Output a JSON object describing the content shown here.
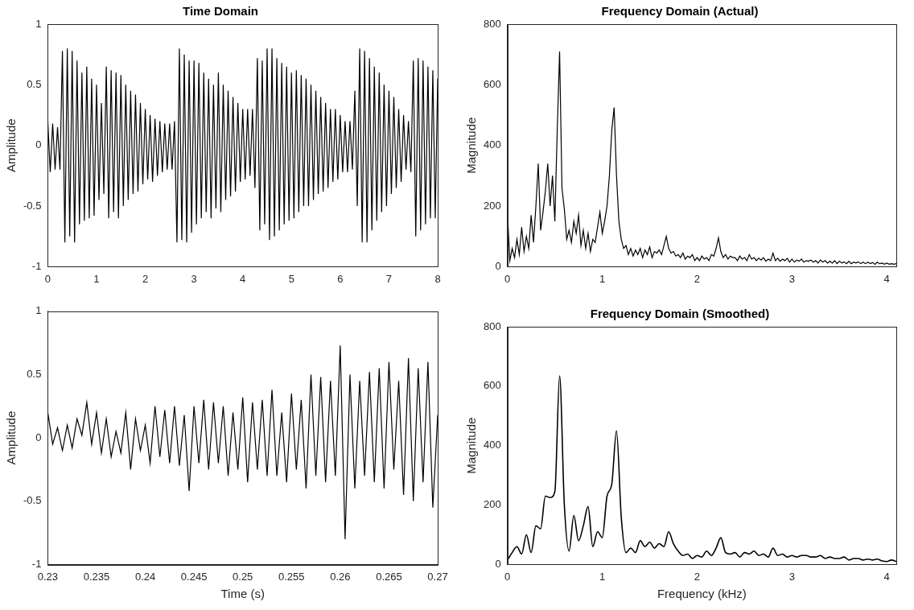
{
  "chart_data": [
    {
      "type": "line",
      "title": "Time Domain",
      "y_label": "Amplitude",
      "color": "#000000",
      "grid": false,
      "xlim": [
        0,
        8
      ],
      "xticks": [
        0,
        1,
        2,
        3,
        4,
        5,
        6,
        7,
        8
      ],
      "ylim": [
        -1,
        1
      ],
      "yticks": [
        -1,
        -0.5,
        0,
        0.5,
        1
      ],
      "x": [
        0,
        0.05,
        0.1,
        0.15,
        0.2,
        0.25,
        0.3,
        0.35,
        0.4,
        0.45,
        0.5,
        0.55,
        0.6,
        0.65,
        0.7,
        0.75,
        0.8,
        0.85,
        0.9,
        0.95,
        1,
        1.05,
        1.1,
        1.15,
        1.2,
        1.25,
        1.3,
        1.35,
        1.4,
        1.45,
        1.5,
        1.55,
        1.6,
        1.65,
        1.7,
        1.75,
        1.8,
        1.85,
        1.9,
        1.95,
        2,
        2.05,
        2.1,
        2.15,
        2.2,
        2.25,
        2.3,
        2.35,
        2.4,
        2.45,
        2.5,
        2.55,
        2.6,
        2.65,
        2.7,
        2.75,
        2.8,
        2.85,
        2.9,
        2.95,
        3,
        3.05,
        3.1,
        3.15,
        3.2,
        3.25,
        3.3,
        3.35,
        3.4,
        3.45,
        3.5,
        3.55,
        3.6,
        3.65,
        3.7,
        3.75,
        3.8,
        3.85,
        3.9,
        3.95,
        4,
        4.05,
        4.1,
        4.15,
        4.2,
        4.25,
        4.3,
        4.35,
        4.4,
        4.45,
        4.5,
        4.55,
        4.6,
        4.65,
        4.7,
        4.75,
        4.8,
        4.85,
        4.9,
        4.95,
        5,
        5.05,
        5.1,
        5.15,
        5.2,
        5.25,
        5.3,
        5.35,
        5.4,
        5.45,
        5.5,
        5.55,
        5.6,
        5.65,
        5.7,
        5.75,
        5.8,
        5.85,
        5.9,
        5.95,
        6,
        6.05,
        6.1,
        6.15,
        6.2,
        6.25,
        6.3,
        6.35,
        6.4,
        6.45,
        6.5,
        6.55,
        6.6,
        6.65,
        6.7,
        6.75,
        6.8,
        6.85,
        6.9,
        6.95,
        7,
        7.05,
        7.1,
        7.15,
        7.2,
        7.25,
        7.3,
        7.35,
        7.4,
        7.45,
        7.5,
        7.55,
        7.6,
        7.65,
        7.7,
        7.75,
        7.8,
        7.85,
        7.9,
        7.95,
        8
      ],
      "values": [
        0.2,
        -0.22,
        0.18,
        -0.2,
        0.15,
        -0.2,
        0.78,
        -0.8,
        0.8,
        -0.75,
        0.78,
        -0.8,
        0.7,
        -0.65,
        0.6,
        -0.62,
        0.65,
        -0.6,
        0.55,
        -0.58,
        0.5,
        -0.45,
        0.35,
        -0.4,
        0.65,
        -0.6,
        0.62,
        -0.55,
        0.6,
        -0.6,
        0.58,
        -0.5,
        0.5,
        -0.45,
        0.45,
        -0.4,
        0.42,
        -0.38,
        0.35,
        -0.32,
        0.3,
        -0.28,
        0.25,
        -0.3,
        0.22,
        -0.25,
        0.2,
        -0.22,
        0.18,
        -0.2,
        0.18,
        -0.2,
        0.2,
        -0.8,
        0.8,
        -0.78,
        0.75,
        -0.8,
        0.7,
        -0.72,
        0.7,
        -0.65,
        0.68,
        -0.6,
        0.6,
        -0.55,
        0.55,
        -0.6,
        0.5,
        -0.52,
        0.6,
        -0.55,
        0.5,
        -0.45,
        0.45,
        -0.42,
        0.4,
        -0.38,
        0.35,
        -0.3,
        0.3,
        -0.28,
        0.3,
        -0.25,
        0.3,
        -0.35,
        0.72,
        -0.7,
        0.7,
        -0.65,
        0.8,
        -0.78,
        0.8,
        -0.75,
        0.72,
        -0.7,
        0.68,
        -0.65,
        0.65,
        -0.62,
        0.6,
        -0.6,
        0.62,
        -0.55,
        0.58,
        -0.5,
        0.55,
        -0.5,
        0.5,
        -0.45,
        0.45,
        -0.4,
        0.4,
        -0.38,
        0.35,
        -0.35,
        0.3,
        -0.3,
        0.3,
        -0.28,
        0.25,
        -0.22,
        0.2,
        -0.22,
        0.2,
        -0.2,
        0.45,
        -0.5,
        0.8,
        -0.8,
        0.78,
        -0.8,
        0.72,
        -0.7,
        0.65,
        -0.62,
        0.6,
        -0.55,
        0.5,
        -0.5,
        0.45,
        -0.4,
        0.4,
        -0.35,
        0.3,
        -0.3,
        0.25,
        -0.2,
        0.2,
        -0.22,
        0.7,
        -0.75,
        0.72,
        -0.7,
        0.7,
        -0.65,
        0.65,
        -0.6,
        0.62,
        -0.6,
        0.55
      ]
    },
    {
      "type": "line",
      "title": "Frequency Domain (Actual)",
      "y_label": "Magnitude",
      "color": "#000000",
      "grid": false,
      "xlim": [
        0,
        4.1
      ],
      "xticks": [
        0,
        1,
        2,
        3,
        4
      ],
      "ylim": [
        0,
        800
      ],
      "yticks": [
        0,
        200,
        400,
        600,
        800
      ],
      "x": [
        0,
        0.025,
        0.05,
        0.075,
        0.1,
        0.125,
        0.15,
        0.175,
        0.2,
        0.225,
        0.25,
        0.275,
        0.3,
        0.325,
        0.35,
        0.375,
        0.4,
        0.425,
        0.45,
        0.475,
        0.5,
        0.525,
        0.55,
        0.575,
        0.6,
        0.625,
        0.65,
        0.675,
        0.7,
        0.725,
        0.75,
        0.775,
        0.8,
        0.825,
        0.85,
        0.875,
        0.9,
        0.925,
        0.95,
        0.975,
        1,
        1.025,
        1.05,
        1.075,
        1.1,
        1.125,
        1.15,
        1.175,
        1.2,
        1.225,
        1.25,
        1.275,
        1.3,
        1.325,
        1.35,
        1.375,
        1.4,
        1.425,
        1.45,
        1.475,
        1.5,
        1.525,
        1.55,
        1.575,
        1.6,
        1.625,
        1.65,
        1.675,
        1.7,
        1.725,
        1.75,
        1.775,
        1.8,
        1.825,
        1.85,
        1.875,
        1.9,
        1.925,
        1.95,
        1.975,
        2,
        2.025,
        2.05,
        2.075,
        2.1,
        2.125,
        2.15,
        2.175,
        2.2,
        2.225,
        2.25,
        2.275,
        2.3,
        2.325,
        2.35,
        2.375,
        2.4,
        2.425,
        2.45,
        2.475,
        2.5,
        2.525,
        2.55,
        2.575,
        2.6,
        2.625,
        2.65,
        2.675,
        2.7,
        2.725,
        2.75,
        2.775,
        2.8,
        2.825,
        2.85,
        2.875,
        2.9,
        2.925,
        2.95,
        2.975,
        3,
        3.025,
        3.05,
        3.075,
        3.1,
        3.125,
        3.15,
        3.175,
        3.2,
        3.225,
        3.25,
        3.275,
        3.3,
        3.325,
        3.35,
        3.375,
        3.4,
        3.425,
        3.45,
        3.475,
        3.5,
        3.525,
        3.55,
        3.575,
        3.6,
        3.625,
        3.65,
        3.675,
        3.7,
        3.725,
        3.75,
        3.775,
        3.8,
        3.825,
        3.85,
        3.875,
        3.9,
        3.925,
        3.95,
        3.975,
        4,
        4.025,
        4.05,
        4.075,
        4.1
      ],
      "values": [
        180,
        20,
        60,
        30,
        90,
        40,
        130,
        50,
        100,
        60,
        170,
        80,
        200,
        340,
        120,
        180,
        250,
        340,
        200,
        300,
        150,
        450,
        710,
        260,
        190,
        90,
        120,
        80,
        150,
        110,
        170,
        70,
        120,
        60,
        110,
        50,
        90,
        80,
        130,
        180,
        110,
        150,
        200,
        300,
        450,
        525,
        300,
        150,
        90,
        60,
        70,
        40,
        60,
        35,
        55,
        40,
        60,
        30,
        55,
        40,
        65,
        30,
        50,
        45,
        55,
        40,
        70,
        100,
        60,
        45,
        50,
        35,
        40,
        30,
        45,
        25,
        35,
        30,
        40,
        20,
        30,
        20,
        35,
        25,
        30,
        20,
        40,
        35,
        60,
        95,
        50,
        30,
        40,
        25,
        35,
        30,
        30,
        20,
        35,
        25,
        30,
        20,
        40,
        25,
        30,
        20,
        28,
        22,
        30,
        18,
        25,
        20,
        45,
        20,
        28,
        18,
        25,
        20,
        28,
        15,
        25,
        15,
        22,
        18,
        25,
        15,
        20,
        18,
        22,
        15,
        20,
        12,
        22,
        15,
        20,
        12,
        18,
        12,
        20,
        10,
        18,
        12,
        16,
        10,
        18,
        10,
        15,
        12,
        16,
        10,
        15,
        10,
        15,
        10,
        14,
        8,
        15,
        10,
        12,
        8,
        12,
        8,
        10,
        8,
        10
      ]
    },
    {
      "type": "line",
      "x_label": "Time (s)",
      "y_label": "Amplitude",
      "color": "#000000",
      "grid": false,
      "xlim": [
        0.23,
        0.27
      ],
      "xticks": [
        0.23,
        0.235,
        0.24,
        0.245,
        0.25,
        0.255,
        0.26,
        0.265,
        0.27
      ],
      "ylim": [
        -1,
        1
      ],
      "yticks": [
        -1,
        -0.5,
        0,
        0.5,
        1
      ],
      "x": [
        0.23,
        0.2305,
        0.231,
        0.2315,
        0.232,
        0.2325,
        0.233,
        0.2335,
        0.234,
        0.2345,
        0.235,
        0.2355,
        0.236,
        0.2365,
        0.237,
        0.2375,
        0.238,
        0.2385,
        0.239,
        0.2395,
        0.24,
        0.2405,
        0.241,
        0.2415,
        0.242,
        0.2425,
        0.243,
        0.2435,
        0.244,
        0.2445,
        0.245,
        0.2455,
        0.246,
        0.2465,
        0.247,
        0.2475,
        0.248,
        0.2485,
        0.249,
        0.2495,
        0.25,
        0.2505,
        0.251,
        0.2515,
        0.252,
        0.2525,
        0.253,
        0.2535,
        0.254,
        0.2545,
        0.255,
        0.2555,
        0.256,
        0.2565,
        0.257,
        0.2575,
        0.258,
        0.2585,
        0.259,
        0.2595,
        0.26,
        0.2605,
        0.261,
        0.2615,
        0.262,
        0.2625,
        0.263,
        0.2635,
        0.264,
        0.2645,
        0.265,
        0.2655,
        0.266,
        0.2665,
        0.267,
        0.2675,
        0.268,
        0.2685,
        0.269,
        0.2695,
        0.27
      ],
      "values": [
        0.2,
        -0.05,
        0.08,
        -0.1,
        0.1,
        -0.08,
        0.15,
        0.02,
        0.28,
        -0.05,
        0.2,
        -0.12,
        0.15,
        -0.15,
        0.05,
        -0.12,
        0.2,
        -0.25,
        0.15,
        -0.1,
        0.1,
        -0.2,
        0.25,
        -0.15,
        0.22,
        -0.2,
        0.25,
        -0.22,
        0.18,
        -0.42,
        0.25,
        -0.2,
        0.3,
        -0.25,
        0.28,
        -0.2,
        0.25,
        -0.3,
        0.2,
        -0.25,
        0.32,
        -0.35,
        0.28,
        -0.25,
        0.3,
        -0.3,
        0.38,
        -0.3,
        0.2,
        -0.35,
        0.35,
        -0.25,
        0.3,
        -0.4,
        0.5,
        -0.3,
        0.48,
        -0.35,
        0.45,
        -0.3,
        0.73,
        -0.8,
        0.5,
        -0.4,
        0.45,
        -0.3,
        0.52,
        -0.35,
        0.55,
        -0.4,
        0.6,
        -0.25,
        0.45,
        -0.45,
        0.63,
        -0.5,
        0.55,
        -0.35,
        0.6,
        -0.55,
        0.18
      ]
    },
    {
      "type": "line",
      "title": "Frequency Domain (Smoothed)",
      "x_label": "Frequency (kHz)",
      "y_label": "Magnitude",
      "color": "#000000",
      "grid": false,
      "xlim": [
        0,
        4.1
      ],
      "xticks": [
        0,
        1,
        2,
        3,
        4
      ],
      "ylim": [
        0,
        800
      ],
      "yticks": [
        0,
        200,
        400,
        600,
        800
      ],
      "x": [
        0,
        0.05,
        0.1,
        0.15,
        0.2,
        0.25,
        0.3,
        0.35,
        0.4,
        0.45,
        0.5,
        0.55,
        0.6,
        0.65,
        0.7,
        0.75,
        0.8,
        0.85,
        0.9,
        0.95,
        1,
        1.05,
        1.1,
        1.15,
        1.2,
        1.25,
        1.3,
        1.35,
        1.4,
        1.45,
        1.5,
        1.55,
        1.6,
        1.65,
        1.7,
        1.75,
        1.8,
        1.85,
        1.9,
        1.95,
        2,
        2.05,
        2.1,
        2.15,
        2.2,
        2.25,
        2.3,
        2.35,
        2.4,
        2.45,
        2.5,
        2.55,
        2.6,
        2.65,
        2.7,
        2.75,
        2.8,
        2.85,
        2.9,
        2.95,
        3,
        3.05,
        3.1,
        3.15,
        3.2,
        3.25,
        3.3,
        3.35,
        3.4,
        3.45,
        3.5,
        3.55,
        3.6,
        3.65,
        3.7,
        3.75,
        3.8,
        3.85,
        3.9,
        3.95,
        4,
        4.05,
        4.1
      ],
      "values": [
        15,
        40,
        60,
        35,
        100,
        40,
        130,
        120,
        230,
        225,
        245,
        635,
        200,
        45,
        165,
        80,
        130,
        195,
        60,
        110,
        90,
        230,
        270,
        450,
        160,
        40,
        55,
        40,
        80,
        60,
        75,
        55,
        70,
        60,
        110,
        70,
        45,
        30,
        35,
        20,
        30,
        25,
        45,
        30,
        55,
        90,
        40,
        35,
        40,
        25,
        40,
        35,
        45,
        30,
        35,
        25,
        55,
        30,
        35,
        25,
        30,
        25,
        30,
        30,
        25,
        25,
        30,
        20,
        25,
        20,
        20,
        25,
        15,
        20,
        20,
        15,
        18,
        15,
        18,
        12,
        10,
        15,
        10
      ]
    }
  ]
}
